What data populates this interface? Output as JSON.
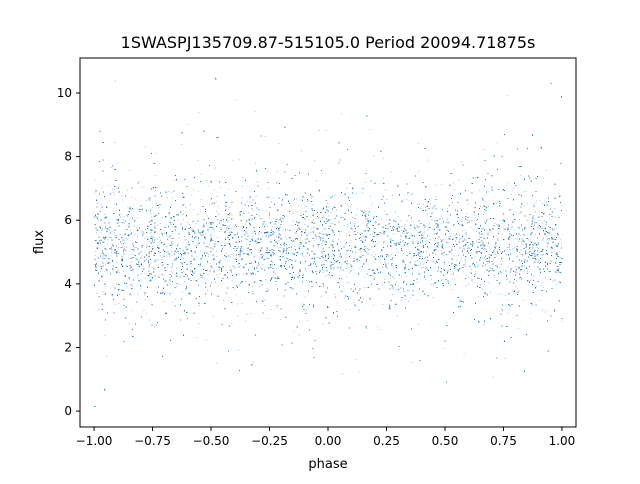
{
  "chart_data": {
    "type": "scatter",
    "title": "1SWASPJ135709.87-515105.0 Period 20094.71875s",
    "xlabel": "phase",
    "ylabel": "flux",
    "xlim": [
      -1.06,
      1.06
    ],
    "ylim": [
      -0.5,
      11.1
    ],
    "xticks": [
      -1.0,
      -0.75,
      -0.5,
      -0.25,
      0.0,
      0.25,
      0.5,
      0.75,
      1.0
    ],
    "xtick_labels": [
      "−1.00",
      "−0.75",
      "−0.50",
      "−0.25",
      "0.00",
      "0.25",
      "0.50",
      "0.75",
      "1.00"
    ],
    "yticks": [
      0,
      2,
      4,
      6,
      8,
      10
    ],
    "ytick_labels": [
      "0",
      "2",
      "4",
      "6",
      "8",
      "10"
    ],
    "grid": false,
    "legend": "none",
    "series_color": "#1f77b4",
    "phase_range": [
      -1.0,
      1.0
    ],
    "flux_distribution": {
      "center": 5.2,
      "core_halfwidth": 0.9,
      "scatter_std": 1.1,
      "min": 0.1,
      "max": 10.6
    },
    "point_count": 40000
  }
}
